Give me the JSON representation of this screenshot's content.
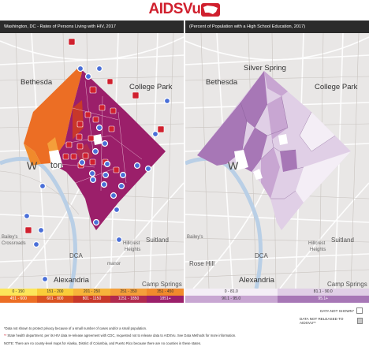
{
  "header": {
    "brand": "AIDSVu"
  },
  "left_panel": {
    "title": "Washington, DC - Rates of Persons Living with HIV, 2017",
    "legend": [
      {
        "label": "0 - 150",
        "color": "#fce65a",
        "text": "#333"
      },
      {
        "label": "151 - 200",
        "color": "#f9cd3a",
        "text": "#333"
      },
      {
        "label": "201 - 250",
        "color": "#f7b43a",
        "text": "#333"
      },
      {
        "label": "251 - 350",
        "color": "#f49f3a",
        "text": "#333"
      },
      {
        "label": "351 - 450",
        "color": "#f08a2c",
        "text": "#333"
      },
      {
        "label": "451 - 600",
        "color": "#ec6e24",
        "text": "#fff"
      },
      {
        "label": "601 - 800",
        "color": "#d95221",
        "text": "#fff"
      },
      {
        "label": "801 - 1150",
        "color": "#c8382a",
        "text": "#fff"
      },
      {
        "label": "1151 - 1850",
        "color": "#b12a4e",
        "text": "#fff"
      },
      {
        "label": "1851+",
        "color": "#9b1f6a",
        "text": "#fff"
      }
    ]
  },
  "right_panel": {
    "title": "(Percent of Population with a High School Education, 2017)",
    "legend": [
      {
        "label": "0 - 81.0",
        "color": "#f4eef6",
        "text": "#333"
      },
      {
        "label": "81.1 - 90.0",
        "color": "#e0cfe6",
        "text": "#333"
      },
      {
        "label": "90.1 - 95.0",
        "color": "#c8a6d2",
        "text": "#333"
      },
      {
        "label": "95.1+",
        "color": "#a777b6",
        "text": "#fff"
      }
    ]
  },
  "places": {
    "bethesda": "Bethesda",
    "silver_spring": "Silver Spring",
    "college_park": "College Park",
    "washington_frag": "W",
    "washington_frag2": "ton",
    "dca": "DCA",
    "suitland": "Suitland",
    "hillcrest": "Hillcrest",
    "heights": "Heights",
    "alexandria": "Alexandria",
    "camp_springs": "Camp Springs",
    "rose_hill": "Rose Hill",
    "groveton": "Groveton",
    "bailey": "Bailey's",
    "crossroads": "Crossroads",
    "manor": "manor"
  },
  "no_data": {
    "not_shown": "DATA NOT SHOWN*",
    "not_released": "DATA NOT RELEASED TO AIDSVU**"
  },
  "footnotes": {
    "f1": "*Data not shown to protect privacy because of a small number of cases and/or a small population.",
    "f2_mark": "**",
    "f2": " State health department, per its HIV data re-release agreement with CDC, requested not to release data to AIDSVu. See Data Methods for more information.",
    "f3": "NOTE: There are no county-level maps for Alaska, District of Columbia, and Puerto Rico because there are no counties in these states."
  },
  "colors": {
    "brand_red": "#d0202e",
    "left_dark": "#9b1f6a",
    "left_orange": "#ec6e24",
    "pin_red": "#d0202e",
    "pin_blue": "#4a6fd8"
  }
}
